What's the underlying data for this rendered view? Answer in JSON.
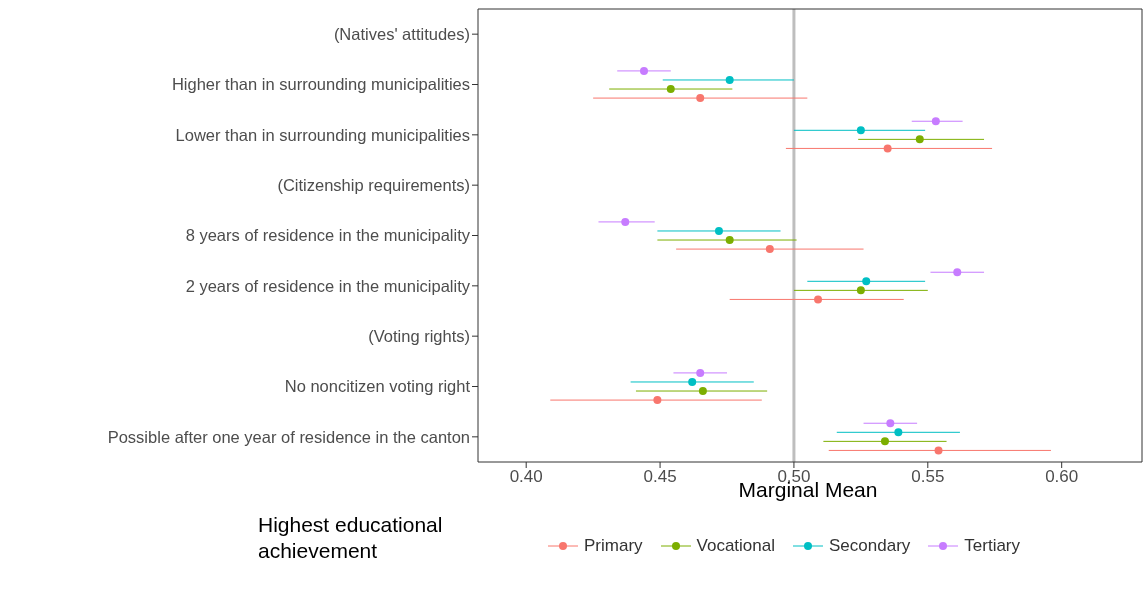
{
  "chart_data": {
    "type": "scatter",
    "orientation": "horizontal",
    "xlabel": "Marginal Mean",
    "legend_title": "Highest educational achievement",
    "legend": "bottom",
    "grid": false,
    "marker": "circle",
    "categories": [
      "(Natives' attitudes)",
      "Higher than in surrounding municipalities",
      "Lower than in surrounding municipalities",
      "(Citizenship requirements)",
      "8 years of residence in the municipality",
      "2 years of residence in the municipality",
      "(Voting rights)",
      "No noncitizen voting right",
      "Possible after one year of residence in the canton"
    ],
    "xlim": [
      0.382,
      0.63
    ],
    "xticks": [
      {
        "value": 0.4,
        "label": "0.40"
      },
      {
        "value": 0.45,
        "label": "0.45"
      },
      {
        "value": 0.5,
        "label": "0.50"
      },
      {
        "value": 0.55,
        "label": "0.55"
      },
      {
        "value": 0.6,
        "label": "0.60"
      }
    ],
    "ref_lines": [
      {
        "axis": "x",
        "value": 0.5,
        "color": "#bebebe"
      }
    ],
    "series": [
      {
        "name": "Primary",
        "color": "#f8766d",
        "values": [
          null,
          0.465,
          0.535,
          null,
          0.491,
          0.509,
          null,
          0.449,
          0.554
        ],
        "errors": [
          null,
          [
            0.425,
            0.505
          ],
          [
            0.497,
            0.574
          ],
          null,
          [
            0.456,
            0.526
          ],
          [
            0.476,
            0.541
          ],
          null,
          [
            0.409,
            0.488
          ],
          [
            0.513,
            0.596
          ]
        ]
      },
      {
        "name": "Vocational",
        "color": "#7cae00",
        "values": [
          null,
          0.454,
          0.547,
          null,
          0.476,
          0.525,
          null,
          0.466,
          0.534
        ],
        "errors": [
          null,
          [
            0.431,
            0.477
          ],
          [
            0.524,
            0.571
          ],
          null,
          [
            0.449,
            0.501
          ],
          [
            0.5,
            0.55
          ],
          null,
          [
            0.441,
            0.49
          ],
          [
            0.511,
            0.557
          ]
        ]
      },
      {
        "name": "Secondary",
        "color": "#00bfc4",
        "values": [
          null,
          0.476,
          0.525,
          null,
          0.472,
          0.527,
          null,
          0.462,
          0.539
        ],
        "errors": [
          null,
          [
            0.451,
            0.5
          ],
          [
            0.5,
            0.549
          ],
          null,
          [
            0.449,
            0.495
          ],
          [
            0.505,
            0.549
          ],
          null,
          [
            0.439,
            0.485
          ],
          [
            0.516,
            0.562
          ]
        ]
      },
      {
        "name": "Tertiary",
        "color": "#c77cff",
        "values": [
          null,
          0.444,
          0.553,
          null,
          0.437,
          0.561,
          null,
          0.465,
          0.536
        ],
        "errors": [
          null,
          [
            0.434,
            0.454
          ],
          [
            0.544,
            0.563
          ],
          null,
          [
            0.427,
            0.448
          ],
          [
            0.551,
            0.571
          ],
          null,
          [
            0.455,
            0.475
          ],
          [
            0.526,
            0.546
          ]
        ]
      }
    ]
  }
}
